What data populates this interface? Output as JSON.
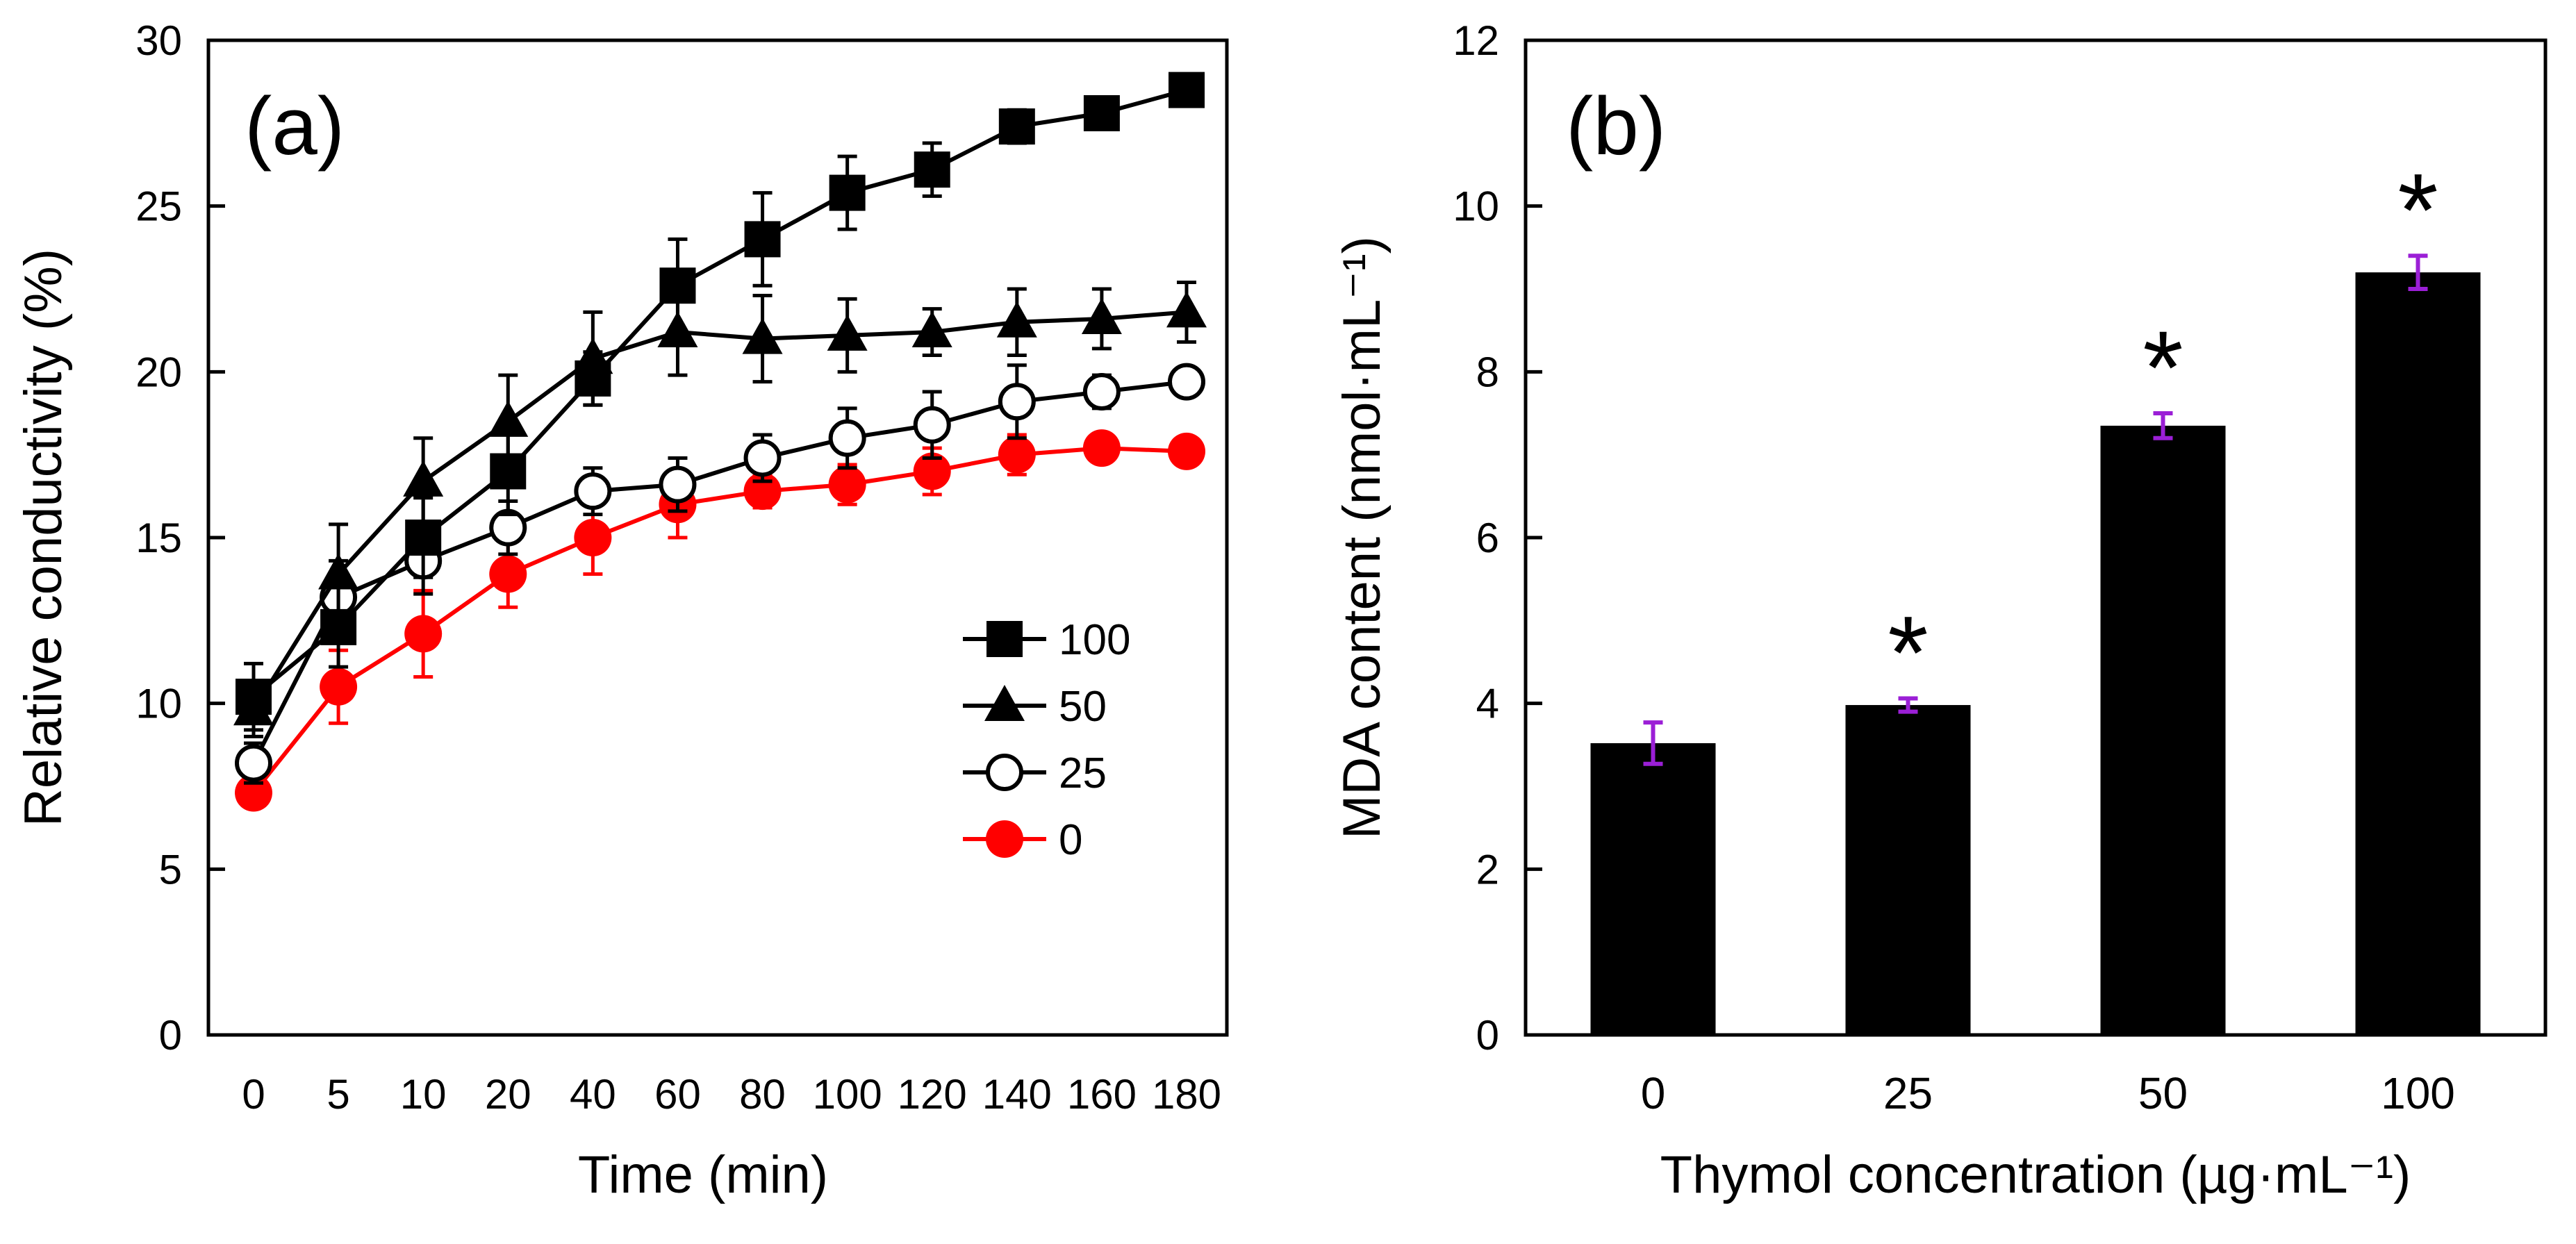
{
  "chart_data": [
    {
      "panel": "(a)",
      "type": "line",
      "xlabel": "Time (min)",
      "ylabel": "Relative conductivity (%)",
      "ylim": [
        0,
        30
      ],
      "yticks": [
        "0",
        "5",
        "10",
        "15",
        "20",
        "25",
        "30"
      ],
      "categories": [
        "0",
        "5",
        "10",
        "20",
        "40",
        "60",
        "80",
        "100",
        "120",
        "140",
        "160",
        "180"
      ],
      "legend_position": "center-right",
      "series": [
        {
          "name": "100",
          "marker": "filled-square",
          "color": "#000000",
          "values": [
            10.2,
            12.3,
            15.0,
            17.0,
            19.8,
            22.6,
            24.0,
            25.4,
            26.1,
            27.4,
            27.8,
            28.5
          ],
          "errors": [
            1.0,
            1.2,
            1.2,
            1.3,
            0.8,
            1.4,
            1.4,
            1.1,
            0.8,
            0.5,
            0.4,
            0.3
          ]
        },
        {
          "name": "50",
          "marker": "filled-triangle",
          "color": "#000000",
          "values": [
            9.8,
            13.9,
            16.7,
            18.5,
            20.4,
            21.2,
            21.0,
            21.1,
            21.2,
            21.5,
            21.6,
            21.8
          ],
          "errors": [
            0.8,
            1.5,
            1.3,
            1.4,
            1.4,
            1.3,
            1.3,
            1.1,
            0.7,
            1.0,
            0.9,
            0.9
          ]
        },
        {
          "name": "25",
          "marker": "open-circle",
          "color": "#000000",
          "values": [
            8.2,
            13.2,
            14.3,
            15.3,
            16.4,
            16.6,
            17.4,
            18.0,
            18.4,
            19.1,
            19.4,
            19.7
          ],
          "errors": [
            0.6,
            1.1,
            1.0,
            0.8,
            0.7,
            0.8,
            0.7,
            0.9,
            1.0,
            1.1,
            0.5,
            0.4
          ]
        },
        {
          "name": "0",
          "marker": "filled-circle",
          "color": "#ff0000",
          "values": [
            7.3,
            10.5,
            12.1,
            13.9,
            15.0,
            16.0,
            16.4,
            16.6,
            17.0,
            17.5,
            17.7,
            17.6
          ],
          "errors": [
            0.4,
            1.1,
            1.3,
            1.0,
            1.1,
            1.0,
            0.5,
            0.6,
            0.7,
            0.6,
            0.4,
            0.4
          ]
        }
      ]
    },
    {
      "panel": "(b)",
      "type": "bar",
      "xlabel": "Thymol concentration (µg·mL⁻¹)",
      "ylabel": "MDA content (nmol·mL⁻¹)",
      "ylim": [
        0,
        12
      ],
      "yticks": [
        "0",
        "2",
        "4",
        "6",
        "8",
        "10",
        "12"
      ],
      "categories": [
        "0",
        "25",
        "50",
        "100"
      ],
      "values": [
        3.52,
        3.98,
        7.35,
        9.2
      ],
      "errors": [
        0.25,
        0.08,
        0.15,
        0.2
      ],
      "significance": [
        "",
        "*",
        "*",
        "*"
      ],
      "bar_color": "#000000",
      "error_color": "#9b1fd6"
    }
  ]
}
